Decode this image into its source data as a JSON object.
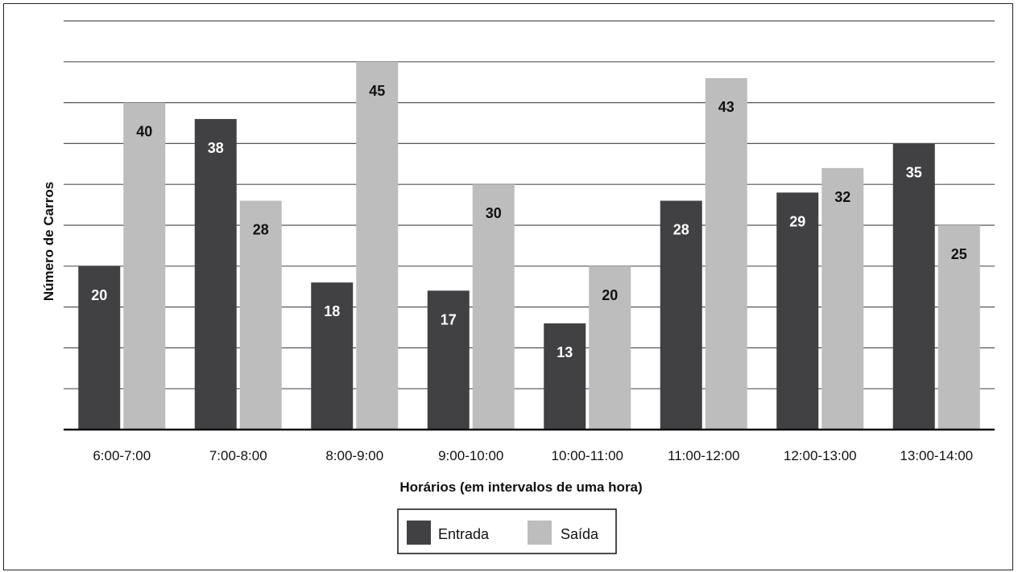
{
  "chart_data": {
    "type": "bar",
    "title": "",
    "xlabel": "Horários (em intervalos de uma hora)",
    "ylabel": "Número de Carros",
    "categories": [
      "6:00-7:00",
      "7:00-8:00",
      "8:00-9:00",
      "9:00-10:00",
      "10:00-11:00",
      "11:00-12:00",
      "12:00-13:00",
      "13:00-14:00"
    ],
    "series": [
      {
        "name": "Entrada",
        "values": [
          20,
          38,
          18,
          17,
          13,
          28,
          29,
          35
        ],
        "color": "#414143",
        "label_color": "#ffffff"
      },
      {
        "name": "Saída",
        "values": [
          40,
          28,
          45,
          30,
          20,
          43,
          32,
          25
        ],
        "color": "#bdbdbe",
        "label_color": "#111111"
      }
    ],
    "ylim": [
      0,
      50
    ],
    "grid": true,
    "legend_position": "bottom-center",
    "y_tick_labels_shown": false
  }
}
